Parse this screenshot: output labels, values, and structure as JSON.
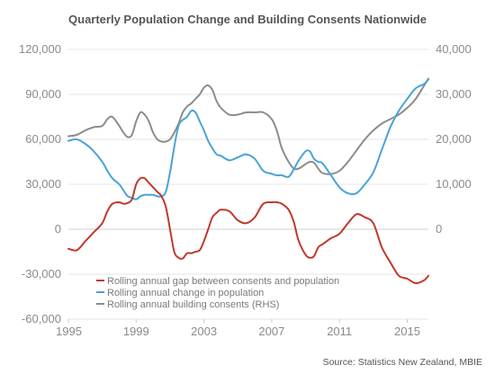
{
  "chart_data": {
    "type": "line",
    "title": "Quarterly Population Change and Building Consents Nationwide",
    "source": "Source: Statistics New Zealand, MBIE",
    "x_range": [
      1995,
      2016.25
    ],
    "x_ticks": [
      1995,
      1999,
      2003,
      2007,
      2011,
      2015
    ],
    "x_tick_labels": [
      "1995",
      "1999",
      "2003",
      "2007",
      "2011",
      "2015"
    ],
    "y_left": {
      "range": [
        -60000,
        120000
      ],
      "ticks": [
        -60000,
        -30000,
        0,
        30000,
        60000,
        90000,
        120000
      ],
      "tick_labels": [
        "-60,000",
        "-30,000",
        "0",
        "30,000",
        "60,000",
        "90,000",
        "120,000"
      ]
    },
    "y_right": {
      "range": [
        -20000,
        40000
      ],
      "ticks": [
        0,
        10000,
        20000,
        30000,
        40000
      ],
      "tick_labels": [
        "0",
        "10,000",
        "20,000",
        "30,000",
        "40,000"
      ]
    },
    "grid": "horizontal",
    "legend_position": "bottom-center",
    "series": [
      {
        "name": "Rolling annual gap between consents and population",
        "axis": "left",
        "color": "#c0392b",
        "x": [
          1995.0,
          1995.5,
          1996.0,
          1996.5,
          1997.0,
          1997.3,
          1997.6,
          1998.0,
          1998.25,
          1998.5,
          1998.75,
          1999.0,
          1999.25,
          1999.5,
          1999.75,
          2000.0,
          2000.25,
          2000.5,
          2000.75,
          2001.0,
          2001.25,
          2001.5,
          2001.75,
          2002.0,
          2002.25,
          2002.5,
          2002.75,
          2003.0,
          2003.25,
          2003.5,
          2003.75,
          2004.0,
          2004.5,
          2005.0,
          2005.5,
          2006.0,
          2006.5,
          2007.0,
          2007.3,
          2007.6,
          2008.0,
          2008.3,
          2008.6,
          2009.0,
          2009.25,
          2009.5,
          2009.75,
          2010.0,
          2010.5,
          2011.0,
          2011.5,
          2012.0,
          2012.5,
          2013.0,
          2013.5,
          2014.0,
          2014.5,
          2015.0,
          2015.5,
          2016.0,
          2016.25
        ],
        "values": [
          -13000,
          -14000,
          -8000,
          -2000,
          4000,
          12000,
          17000,
          18000,
          17000,
          17500,
          20000,
          30000,
          34000,
          34000,
          31000,
          28000,
          25000,
          22000,
          15000,
          0,
          -15000,
          -19000,
          -19500,
          -16000,
          -16000,
          -15000,
          -14000,
          -8000,
          0,
          8000,
          11000,
          13000,
          12000,
          6000,
          4000,
          8000,
          17000,
          18000,
          18000,
          17000,
          13000,
          5000,
          -8000,
          -17000,
          -19000,
          -18000,
          -12000,
          -10000,
          -6000,
          -3000,
          4000,
          10000,
          8000,
          4000,
          -12000,
          -22000,
          -31000,
          -33000,
          -36000,
          -34000,
          -31000
        ]
      },
      {
        "name": "Rolling annual change in population",
        "axis": "left",
        "color": "#4aa3d8",
        "x": [
          1995.0,
          1995.5,
          1996.0,
          1996.5,
          1997.0,
          1997.3,
          1997.6,
          1998.0,
          1998.25,
          1998.5,
          1998.75,
          1999.0,
          1999.25,
          1999.5,
          1999.75,
          2000.0,
          2000.25,
          2000.5,
          2000.75,
          2001.0,
          2001.25,
          2001.5,
          2001.75,
          2002.0,
          2002.25,
          2002.5,
          2002.75,
          2003.0,
          2003.25,
          2003.5,
          2003.75,
          2004.0,
          2004.5,
          2005.0,
          2005.5,
          2006.0,
          2006.5,
          2007.0,
          2007.3,
          2007.6,
          2008.0,
          2008.3,
          2008.6,
          2009.0,
          2009.25,
          2009.5,
          2009.75,
          2010.0,
          2010.5,
          2011.0,
          2011.5,
          2012.0,
          2012.5,
          2013.0,
          2013.5,
          2014.0,
          2014.5,
          2015.0,
          2015.5,
          2016.0,
          2016.25
        ],
        "values": [
          59000,
          60000,
          57000,
          52000,
          45000,
          39000,
          34000,
          30000,
          26000,
          22000,
          21000,
          20000,
          22000,
          23000,
          23000,
          23000,
          22000,
          22000,
          25000,
          38000,
          55000,
          69000,
          73000,
          75000,
          79000,
          78000,
          72000,
          66000,
          59000,
          54000,
          50000,
          49000,
          46000,
          48000,
          50000,
          47000,
          39000,
          37000,
          36000,
          36000,
          35000,
          40000,
          46000,
          52000,
          52000,
          47000,
          45000,
          44000,
          36000,
          28000,
          24000,
          24000,
          30000,
          38000,
          53000,
          68000,
          79000,
          87000,
          94000,
          97000,
          100000
        ]
      },
      {
        "name": "Rolling annual building consents (RHS)",
        "axis": "right",
        "color": "#8c8c8c",
        "x": [
          1995.0,
          1995.5,
          1996.0,
          1996.5,
          1997.0,
          1997.3,
          1997.6,
          1998.0,
          1998.25,
          1998.5,
          1998.75,
          1999.0,
          1999.25,
          1999.5,
          1999.75,
          2000.0,
          2000.25,
          2000.5,
          2000.75,
          2001.0,
          2001.25,
          2001.5,
          2001.75,
          2002.0,
          2002.25,
          2002.5,
          2002.75,
          2003.0,
          2003.25,
          2003.5,
          2003.75,
          2004.0,
          2004.5,
          2005.0,
          2005.5,
          2006.0,
          2006.5,
          2007.0,
          2007.3,
          2007.6,
          2008.0,
          2008.3,
          2008.6,
          2009.0,
          2009.25,
          2009.5,
          2009.75,
          2010.0,
          2010.5,
          2011.0,
          2011.5,
          2012.0,
          2012.5,
          2013.0,
          2013.5,
          2014.0,
          2014.5,
          2015.0,
          2015.5,
          2016.0,
          2016.25
        ],
        "values": [
          20700,
          21000,
          22000,
          22700,
          23000,
          24500,
          25000,
          23000,
          21500,
          20500,
          21000,
          24000,
          26000,
          25500,
          24000,
          21500,
          20000,
          19500,
          19500,
          20000,
          21500,
          23500,
          26000,
          27300,
          28000,
          29000,
          30000,
          31500,
          32000,
          31000,
          28500,
          27000,
          25500,
          25500,
          26000,
          26000,
          26000,
          24500,
          22000,
          18000,
          15000,
          13500,
          13500,
          14500,
          15000,
          14800,
          13500,
          12500,
          12300,
          13000,
          15000,
          17500,
          20000,
          22000,
          23500,
          24500,
          25500,
          27000,
          29000,
          32000,
          33500
        ]
      }
    ]
  }
}
